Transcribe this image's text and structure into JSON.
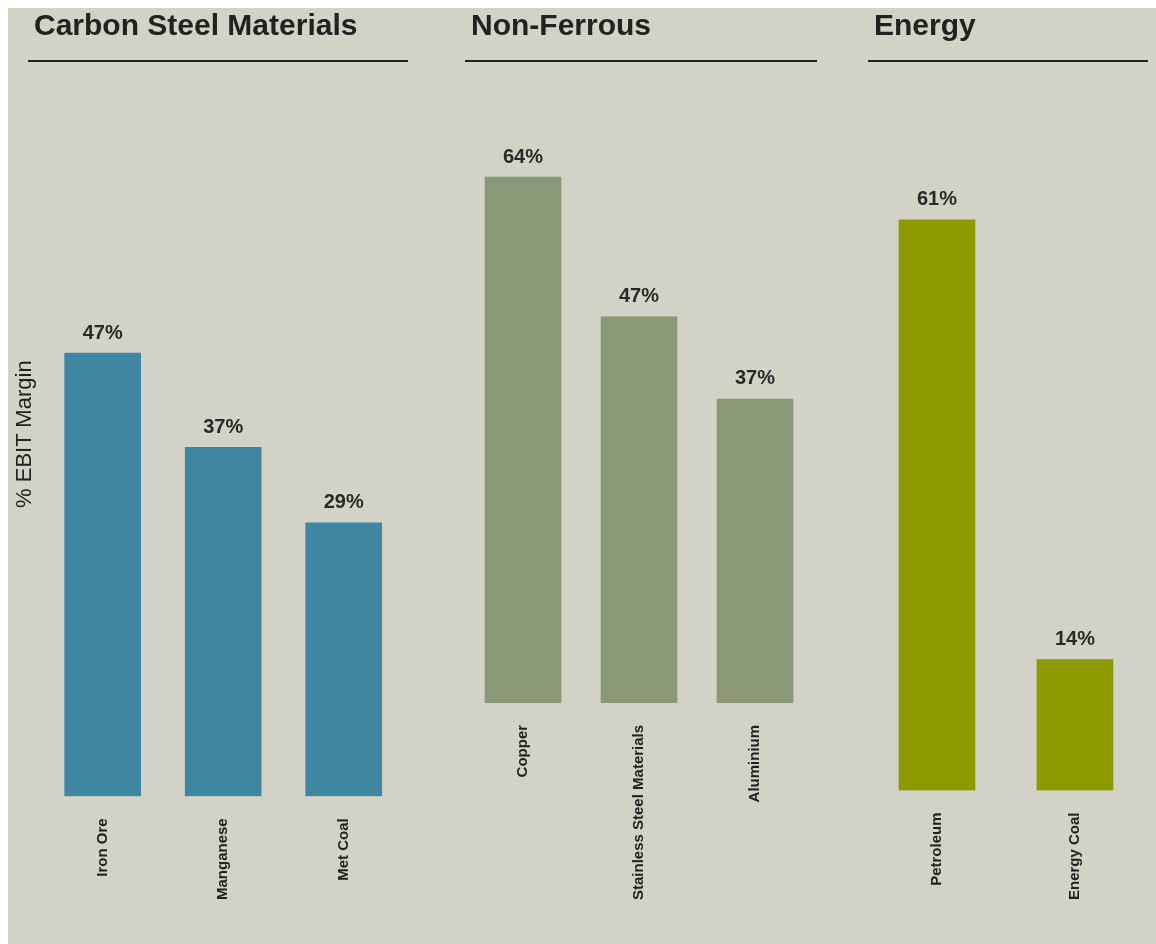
{
  "chart_data": [
    {
      "type": "bar",
      "title": "Carbon Steel Materials",
      "ylabel": "% EBIT Margin",
      "categories": [
        "Iron Ore",
        "Manganese",
        "Met Coal"
      ],
      "values": [
        47,
        37,
        29
      ],
      "value_labels": [
        "47%",
        "37%",
        "29%"
      ],
      "color": "#3f86a3",
      "tick_labels": "x",
      "grid": false,
      "legend": false
    },
    {
      "type": "bar",
      "title": "Non-Ferrous",
      "categories": [
        "Copper",
        "Stainless Steel Materials",
        "Aluminium"
      ],
      "values": [
        64,
        47,
        37
      ],
      "value_labels": [
        "64%",
        "47%",
        "37%"
      ],
      "color": "#8a9878",
      "tick_labels": "x",
      "grid": false,
      "legend": false
    },
    {
      "type": "bar",
      "title": "Energy",
      "categories": [
        "Petroleum",
        "Energy Coal"
      ],
      "values": [
        61,
        14
      ],
      "value_labels": [
        "61%",
        "14%"
      ],
      "color": "#8c9a00",
      "tick_labels": "x",
      "grid": false,
      "legend": false
    }
  ]
}
